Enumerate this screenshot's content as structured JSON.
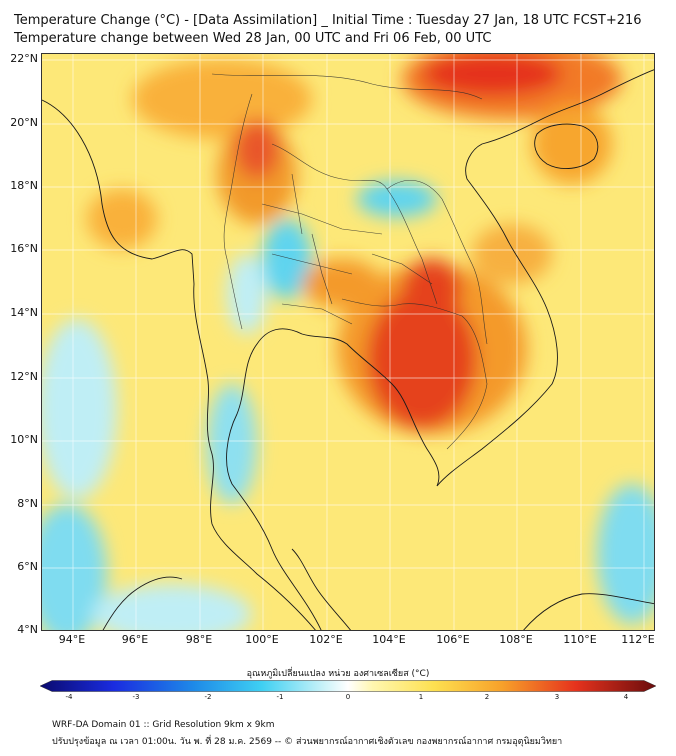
{
  "title": {
    "line1": "Temperature Change (°C) - [Data Assimilation] _ Initial Time : Tuesday 27 Jan, 18 UTC FCST+216",
    "line2": "Temperature change between Wed 28 Jan, 00 UTC and Fri 06 Feb, 00 UTC"
  },
  "map": {
    "lat_labels": [
      "22°N",
      "20°N",
      "18°N",
      "16°N",
      "14°N",
      "12°N",
      "10°N",
      "8°N",
      "6°N",
      "4°N"
    ],
    "lon_labels": [
      "94°E",
      "96°E",
      "98°E",
      "100°E",
      "102°E",
      "104°E",
      "106°E",
      "108°E",
      "110°E",
      "112°E"
    ]
  },
  "colorbar": {
    "title": "อุณหภูมิเปลี่ยนแปลง หน่วย องศาเซลเซียส (°C)",
    "ticks": [
      "-4",
      "-3",
      "-2",
      "-1",
      "0",
      "1",
      "2",
      "3",
      "4"
    ],
    "range": [
      -4,
      4
    ]
  },
  "footer": {
    "line1": "WRF-DA Domain 01 :: Grid Resolution 9km x 9km",
    "line2": "ปรับปรุงข้อมูล ณ เวลา 01:00น. วัน พ. ที่ 28 ม.ค. 2569 -- © ส่วนพยากรณ์อากาศเชิงตัวเลข กองพยากรณ์อากาศ กรมอุตุนิยมวิทยา"
  },
  "colors": {
    "base_field": "#fde878",
    "warm": "#f7a12a",
    "hot": "#e8321e",
    "cool": "#9fe6f2",
    "cold": "#4fd0ee",
    "coastline": "#1a1a1a",
    "grid": "#ffffff"
  }
}
